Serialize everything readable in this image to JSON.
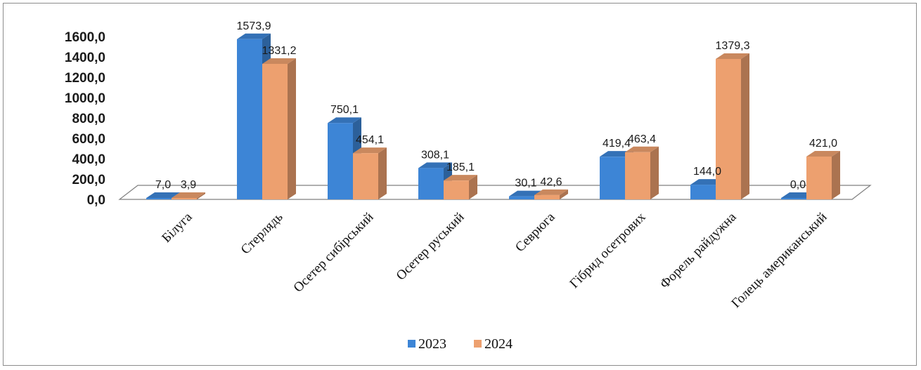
{
  "chart_data": {
    "type": "bar",
    "categories": [
      "Білуга",
      "Стерлядь",
      "Осетер сибірський",
      "Осетер руський",
      "Севрюга",
      "Гібрид осетрових",
      "Форель райдужна",
      "Голець американський"
    ],
    "series": [
      {
        "name": "2023",
        "values": [
          7.0,
          1573.9,
          750.1,
          308.1,
          30.1,
          419.4,
          144.0,
          0.0
        ],
        "labels": [
          "7,0",
          "1573,9",
          "750,1",
          "308,1",
          "30,1",
          "419,4",
          "144,0",
          "0,0"
        ]
      },
      {
        "name": "2024",
        "values": [
          3.9,
          1331.2,
          454.1,
          185.1,
          42.6,
          463.4,
          1379.3,
          421.0
        ],
        "labels": [
          "3,9",
          "1331,2",
          "454,1",
          "185,1",
          "42,6",
          "463,4",
          "1379,3",
          "421,0"
        ]
      }
    ],
    "yticks": [
      "0,0",
      "200,0",
      "400,0",
      "600,0",
      "800,0",
      "1000,0",
      "1200,0",
      "1400,0",
      "1600,0"
    ],
    "ylim": [
      0,
      1600
    ],
    "legend_position": "bottom",
    "style": "3d-clustered-column",
    "colors": {
      "2023": "#3d85d6",
      "2024": "#eda06f"
    }
  }
}
